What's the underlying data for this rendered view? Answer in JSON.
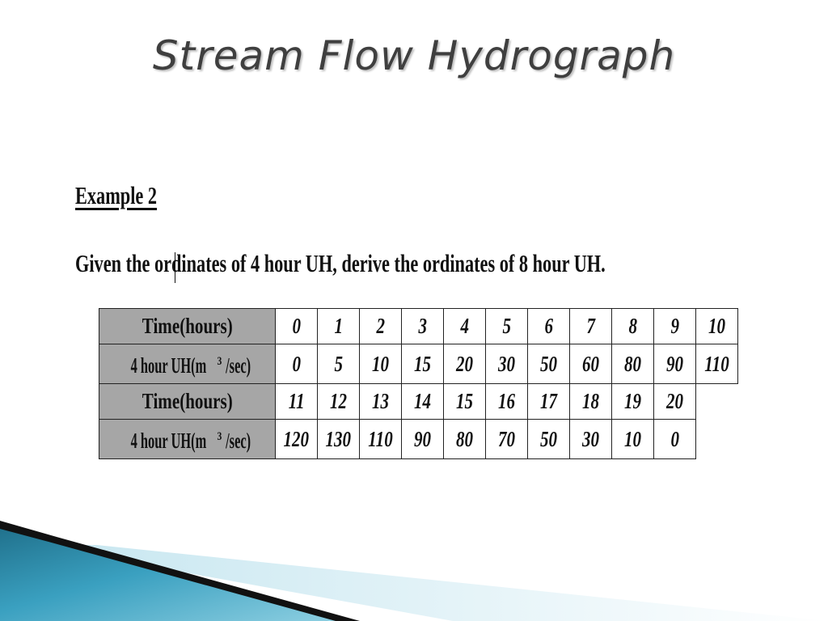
{
  "slide": {
    "title": "Stream Flow Hydrograph",
    "example_heading": "Example 2",
    "prompt": "Given the ordinates of 4 hour UH, derive the ordinates of 8 hour UH."
  },
  "table": {
    "rows": [
      {
        "label": "Time(hours)",
        "values": [
          "0",
          "1",
          "2",
          "3",
          "4",
          "5",
          "6",
          "7",
          "8",
          "9",
          "10"
        ]
      },
      {
        "label_prefix": "4 hour UH(m",
        "label_sup": "3",
        "label_suffix": "/sec)",
        "values": [
          "0",
          "5",
          "10",
          "15",
          "20",
          "30",
          "50",
          "60",
          "80",
          "90",
          "110"
        ]
      },
      {
        "label": "Time(hours)",
        "values": [
          "11",
          "12",
          "13",
          "14",
          "15",
          "16",
          "17",
          "18",
          "19",
          "20"
        ]
      },
      {
        "label_prefix": "4 hour UH(m",
        "label_sup": "3",
        "label_suffix": "/sec)",
        "values": [
          "120",
          "130",
          "110",
          "90",
          "80",
          "70",
          "50",
          "30",
          "10",
          "0"
        ]
      }
    ]
  },
  "colors": {
    "label_cell_bg": "#a6a6a6",
    "accent_teal": "#2a8aa6",
    "accent_dark": "#111111"
  }
}
